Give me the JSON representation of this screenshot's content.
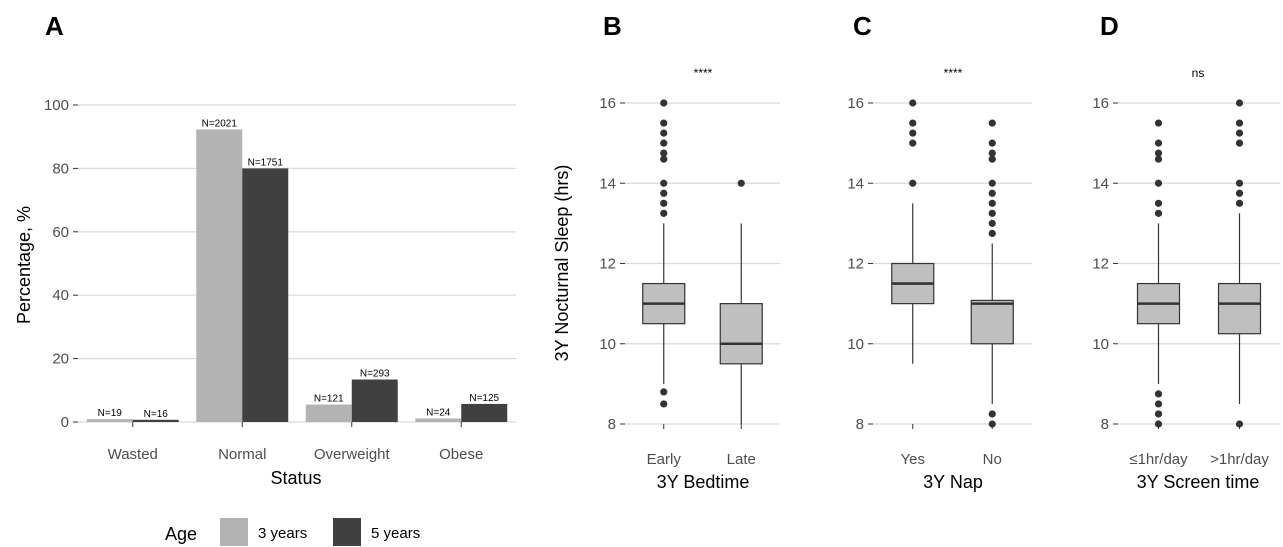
{
  "chart_data": [
    {
      "panel": "A",
      "type": "bar",
      "categories": [
        "Wasted",
        "Normal",
        "Overweight",
        "Obese"
      ],
      "xlabel": "Status",
      "ylabel": "Percentage, %",
      "ylim": [
        0,
        100
      ],
      "yticks": [
        0,
        20,
        40,
        60,
        80,
        100
      ],
      "grid": true,
      "legend": {
        "title": "Age",
        "placement": "bottom"
      },
      "series": [
        {
          "name": "3 years",
          "color": "#b3b3b3",
          "values": [
            0.9,
            92.3,
            5.5,
            1.1
          ],
          "labels": [
            "N=19",
            "N=2021",
            "N=121",
            "N=24"
          ]
        },
        {
          "name": "5 years",
          "color": "#404040",
          "values": [
            0.7,
            80.0,
            13.4,
            5.7
          ],
          "labels": [
            "N=16",
            "N=1751",
            "N=293",
            "N=125"
          ]
        }
      ]
    },
    {
      "panel": "B",
      "type": "box",
      "xlabel": "3Y Bedtime",
      "ylabel": "3Y Nocturnal Sleep (hrs)",
      "ylim": [
        8,
        16
      ],
      "yticks": [
        8,
        10,
        12,
        14,
        16
      ],
      "significance": "****",
      "groups": [
        {
          "name": "Early",
          "whisker_low": 9.0,
          "q1": 10.5,
          "median": 11.0,
          "q3": 11.5,
          "whisker_high": 13.0,
          "outliers": [
            8.5,
            8.8,
            13.25,
            13.5,
            13.75,
            14.0,
            14.6,
            14.75,
            15.0,
            15.25,
            15.5,
            16.0
          ]
        },
        {
          "name": "Late",
          "whisker_low": 8.0,
          "q1": 9.5,
          "median": 10.0,
          "q3": 11.0,
          "whisker_high": 13.0,
          "outliers": [
            14.0
          ]
        }
      ]
    },
    {
      "panel": "C",
      "type": "box",
      "xlabel": "3Y Nap",
      "ylabel": "",
      "ylim": [
        8,
        16
      ],
      "yticks": [
        8,
        10,
        12,
        14,
        16
      ],
      "significance": "****",
      "groups": [
        {
          "name": "Yes",
          "whisker_low": 9.5,
          "q1": 11.0,
          "median": 11.5,
          "q3": 12.0,
          "whisker_high": 13.5,
          "outliers": [
            14.0,
            15.0,
            15.25,
            15.5,
            16.0
          ]
        },
        {
          "name": "No",
          "whisker_low": 8.5,
          "q1": 10.0,
          "median": 11.0,
          "q3": 11.08,
          "whisker_high": 12.5,
          "outliers": [
            8.0,
            8.25,
            12.75,
            13.0,
            13.25,
            13.5,
            13.75,
            14.0,
            14.6,
            14.75,
            15.0,
            15.5
          ]
        }
      ]
    },
    {
      "panel": "D",
      "type": "box",
      "xlabel": "3Y Screen time",
      "ylabel": "",
      "ylim": [
        8,
        16
      ],
      "yticks": [
        8,
        10,
        12,
        14,
        16
      ],
      "significance": "ns",
      "groups": [
        {
          "name": "≤1hr/day",
          "whisker_low": 9.0,
          "q1": 10.5,
          "median": 11.0,
          "q3": 11.5,
          "whisker_high": 13.0,
          "outliers": [
            8.0,
            8.25,
            8.5,
            8.75,
            13.25,
            13.5,
            14.0,
            14.6,
            14.75,
            15.0,
            15.5
          ]
        },
        {
          "name": ">1hr/day",
          "whisker_low": 8.5,
          "q1": 10.25,
          "median": 11.0,
          "q3": 11.5,
          "whisker_high": 13.25,
          "outliers": [
            8.0,
            13.5,
            13.75,
            14.0,
            15.0,
            15.25,
            15.5,
            16.0
          ]
        }
      ]
    }
  ],
  "box_fill": "#bfbfbf",
  "line_color": "#333333"
}
